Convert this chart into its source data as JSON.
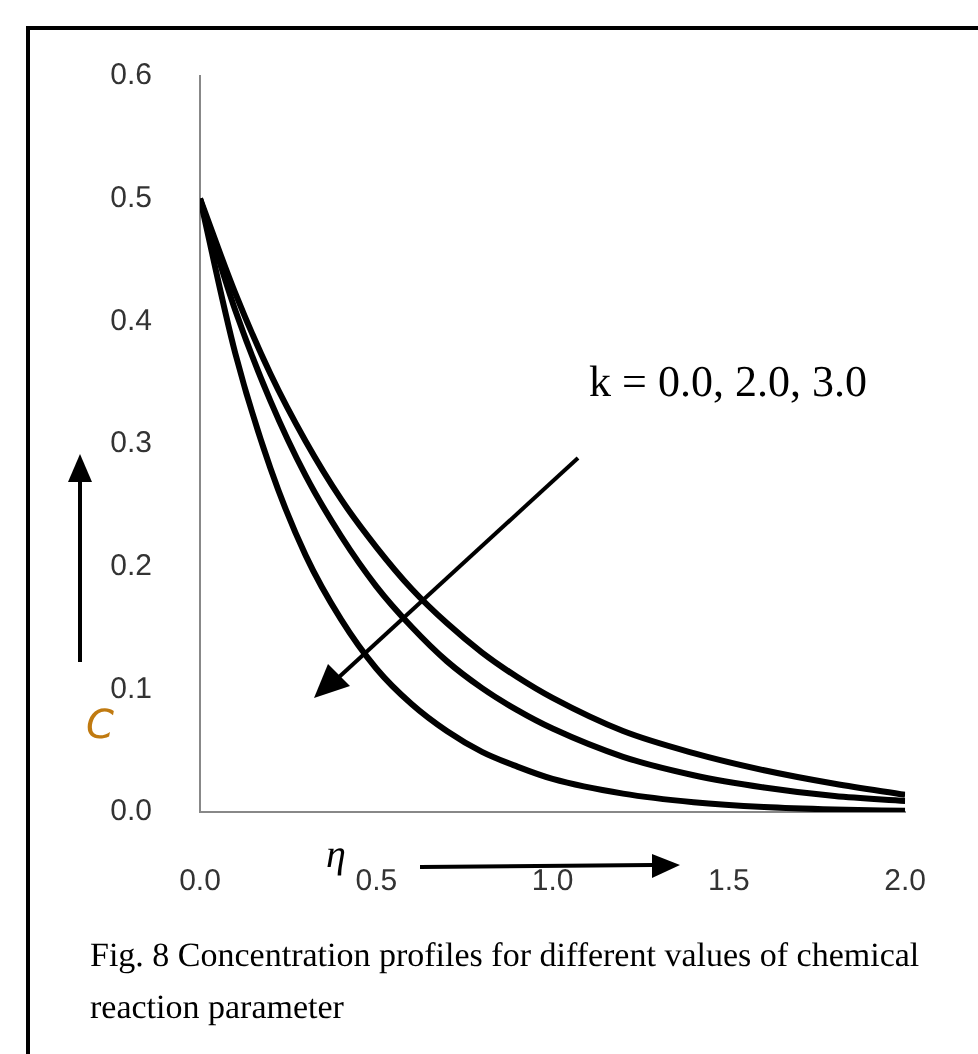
{
  "chart_data": {
    "type": "line",
    "xlabel": "η",
    "ylabel": "C",
    "annotations": [
      "k = 0.0, 2.0, 3.0",
      "Fig. 8 Concentration profiles for different values of chemical reaction parameter"
    ],
    "x": [
      0,
      0.1,
      0.2,
      0.3,
      0.4,
      0.5,
      0.6,
      0.7,
      0.8,
      0.9,
      1.0,
      1.2,
      1.4,
      1.6,
      1.8,
      2.0
    ],
    "series": [
      {
        "color": "#000000",
        "values": [
          0.5,
          0.423,
          0.357,
          0.302,
          0.255,
          0.216,
          0.182,
          0.154,
          0.13,
          0.11,
          0.093,
          0.066,
          0.048,
          0.034,
          0.023,
          0.014
        ]
      },
      {
        "color": "#000000",
        "values": [
          0.5,
          0.409,
          0.335,
          0.274,
          0.225,
          0.184,
          0.151,
          0.123,
          0.101,
          0.083,
          0.068,
          0.045,
          0.03,
          0.02,
          0.013,
          0.009
        ]
      },
      {
        "color": "#000000",
        "values": [
          0.5,
          0.374,
          0.28,
          0.209,
          0.157,
          0.117,
          0.088,
          0.066,
          0.049,
          0.037,
          0.027,
          0.015,
          0.008,
          0.004,
          0.002,
          0.001
        ]
      }
    ],
    "xlim": [
      0,
      2
    ],
    "ylim": [
      0,
      0.6
    ],
    "xticks": [
      {
        "value": 0,
        "label": "0.0"
      },
      {
        "value": 0.5,
        "label": "0.5"
      },
      {
        "value": 1,
        "label": "1.0"
      },
      {
        "value": 1.5,
        "label": "1.5"
      },
      {
        "value": 2,
        "label": "2.0"
      }
    ],
    "yticks": [
      {
        "value": 0,
        "label": "0.0"
      },
      0.1,
      0.2,
      0.3,
      0.4,
      0.5,
      0.6
    ],
    "grid": false
  }
}
